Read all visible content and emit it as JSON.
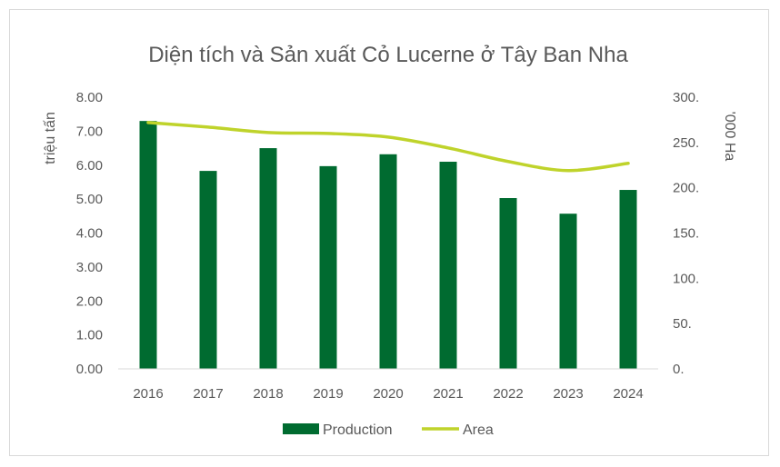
{
  "chart_data": {
    "type": "bar",
    "title": "Diện tích và Sản xuất Cỏ Lucerne ở Tây Ban Nha",
    "categories": [
      "2016",
      "2017",
      "2018",
      "2019",
      "2020",
      "2021",
      "2022",
      "2023",
      "2024"
    ],
    "series": [
      {
        "name": "Production",
        "type": "bar",
        "axis": "left",
        "color": "#006b30",
        "values": [
          7.3,
          5.83,
          6.5,
          5.97,
          6.32,
          6.1,
          5.03,
          4.57,
          5.27
        ]
      },
      {
        "name": "Area",
        "type": "line",
        "axis": "right",
        "color": "#bfd32b",
        "values": [
          272,
          267,
          261,
          260,
          256,
          244,
          229,
          219,
          227
        ]
      }
    ],
    "ylabel": "triệu tấn",
    "y2label": "'000 Ha",
    "ylim": [
      0,
      8
    ],
    "y2lim": [
      0,
      300
    ],
    "yticks": [
      "0.00",
      "1.00",
      "2.00",
      "3.00",
      "4.00",
      "5.00",
      "6.00",
      "7.00",
      "8.00"
    ],
    "y2ticks": [
      "0.",
      "50.",
      "100.",
      "150.",
      "200.",
      "250.",
      "300."
    ],
    "legend_position": "bottom",
    "grid": false
  }
}
